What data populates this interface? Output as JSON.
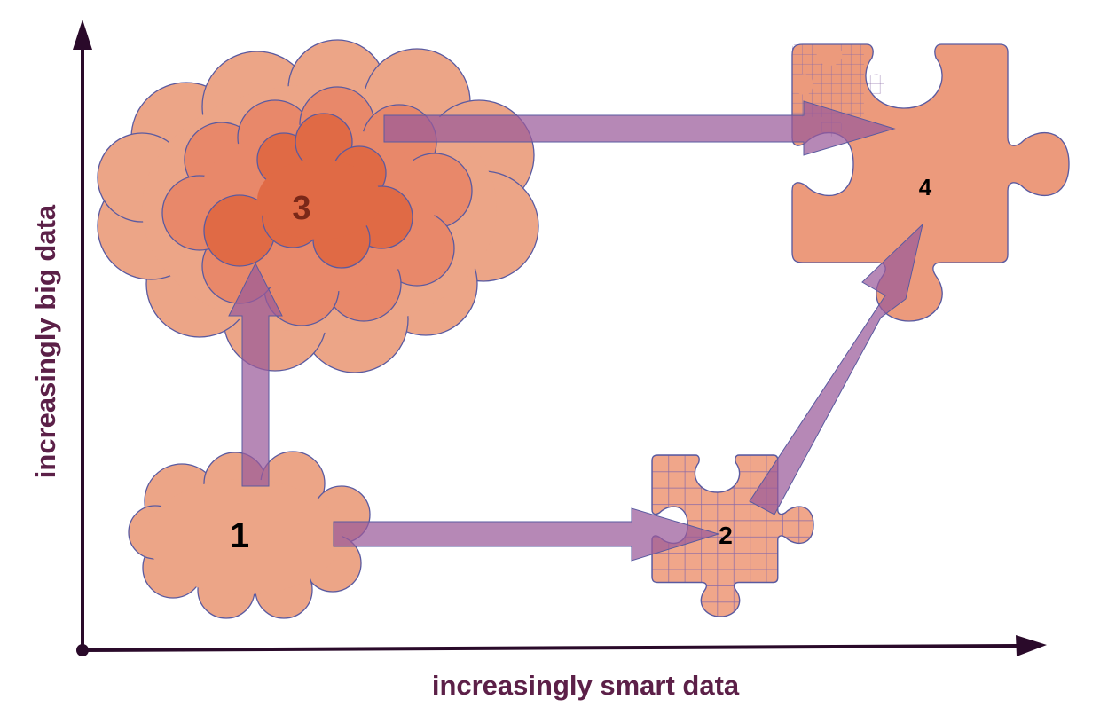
{
  "axes": {
    "x_label": "increasingly smart data",
    "y_label": "increasingly big data"
  },
  "nodes": {
    "n1": {
      "label": "1",
      "shape": "cloud"
    },
    "n2": {
      "label": "2",
      "shape": "puzzle-piece"
    },
    "n3": {
      "label": "3",
      "shape": "cloud-cluster"
    },
    "n4": {
      "label": "4",
      "shape": "puzzle-piece"
    }
  },
  "edges": [
    {
      "from": "1",
      "to": "2"
    },
    {
      "from": "1",
      "to": "3"
    },
    {
      "from": "2",
      "to": "4"
    },
    {
      "from": "3",
      "to": "4"
    }
  ],
  "colors": {
    "axis": "#2a0a2a",
    "axis_label": "#5c2048",
    "cloud_fill": "#eca587",
    "cloud_mid": "#e8886a",
    "cloud_dark": "#e06a45",
    "shape_stroke": "#5a5aa0",
    "puzzle_fill": "#f0a68a",
    "puzzle_grid": "#8a6aa8",
    "arrow_fill": "#9a5a9a",
    "label_3": "#7a2818"
  }
}
